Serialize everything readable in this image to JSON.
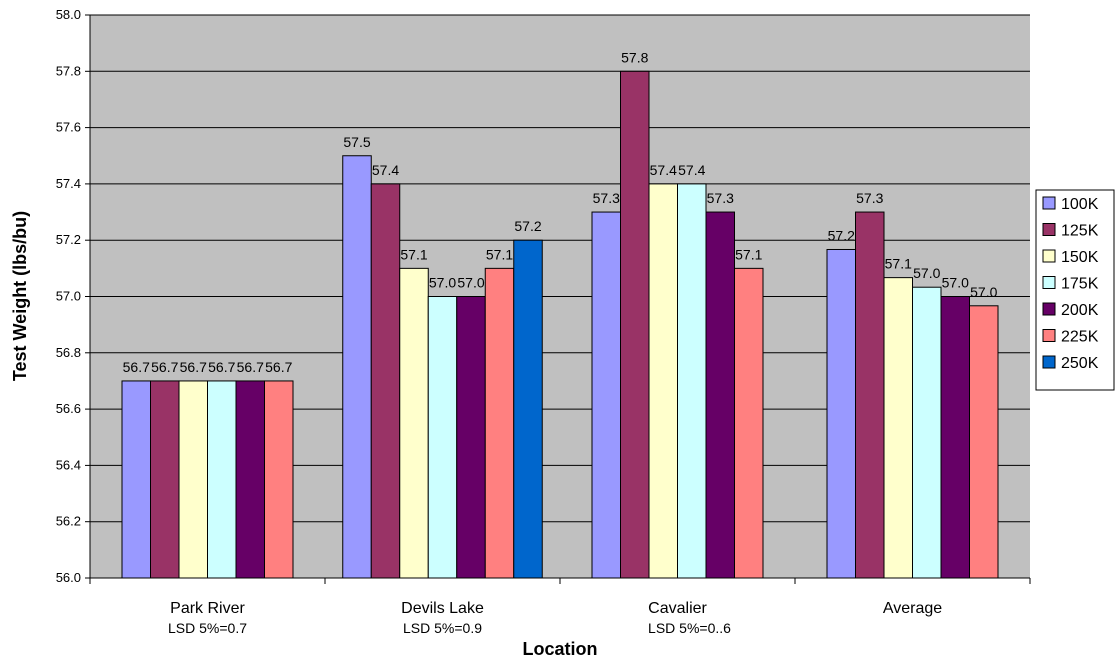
{
  "chart_data": {
    "type": "bar",
    "title": "",
    "xlabel": "Location",
    "ylabel": "Test Weight (lbs/bu)",
    "ylim": [
      56.0,
      58.0
    ],
    "ytick_step": 0.2,
    "grid": true,
    "legend_position": "right",
    "plot_background": "#c0c0c0",
    "categories": [
      "Park River",
      "Devils Lake",
      "Cavalier",
      "Average"
    ],
    "category_notes": [
      "LSD 5%=0.7",
      "LSD 5%=0.9",
      "LSD 5%=0..6",
      ""
    ],
    "series": [
      {
        "name": "100K",
        "color": "#9999ff",
        "values": [
          56.7,
          57.5,
          57.3,
          57.167
        ],
        "labels": [
          "56.7",
          "57.5",
          "57.3",
          "57.2"
        ]
      },
      {
        "name": "125K",
        "color": "#993366",
        "values": [
          56.7,
          57.4,
          57.8,
          57.3
        ],
        "labels": [
          "56.7",
          "57.4",
          "57.8",
          "57.3"
        ]
      },
      {
        "name": "150K",
        "color": "#ffffcc",
        "values": [
          56.7,
          57.1,
          57.4,
          57.067
        ],
        "labels": [
          "56.7",
          "57.1",
          "57.4",
          "57.1"
        ]
      },
      {
        "name": "175K",
        "color": "#ccffff",
        "values": [
          56.7,
          57.0,
          57.4,
          57.033
        ],
        "labels": [
          "56.7",
          "57.0",
          "57.4",
          "57.0"
        ]
      },
      {
        "name": "200K",
        "color": "#660066",
        "values": [
          56.7,
          57.0,
          57.3,
          57.0
        ],
        "labels": [
          "56.7",
          "57.0",
          "57.3",
          "57.0"
        ]
      },
      {
        "name": "225K",
        "color": "#ff8080",
        "values": [
          56.7,
          57.1,
          57.1,
          56.967
        ],
        "labels": [
          "56.7",
          "57.1",
          "57.1",
          "57.0"
        ]
      },
      {
        "name": "250K",
        "color": "#0066cc",
        "values": [
          null,
          57.2,
          null,
          null
        ],
        "labels": [
          null,
          "57.2",
          null,
          null
        ]
      }
    ]
  }
}
